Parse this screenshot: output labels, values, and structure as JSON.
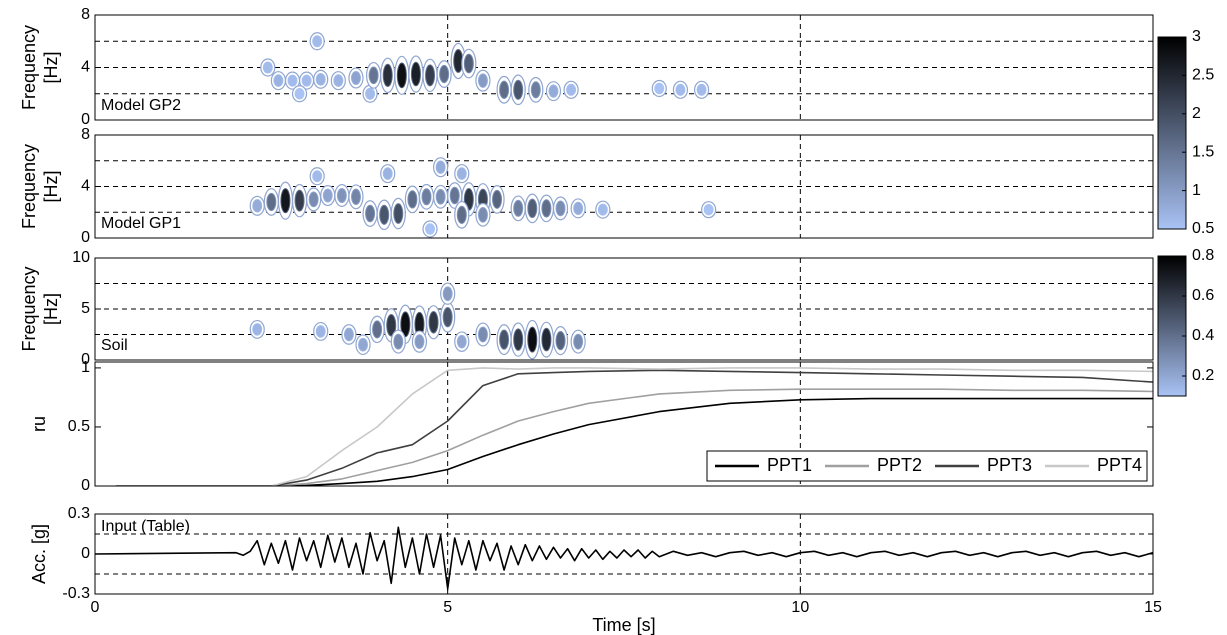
{
  "chart_data": [
    {
      "type": "spectrogram",
      "label": "Model GP2",
      "ylabel_lines": [
        "Frequency",
        "[Hz]"
      ],
      "xlim": [
        0,
        15
      ],
      "vgrid": [
        5,
        10
      ],
      "ylim": [
        0,
        8
      ],
      "yticks": [
        0,
        4,
        8
      ],
      "hgrid": [
        2,
        4,
        6
      ],
      "clim": [
        0.5,
        3
      ],
      "colormap": [
        "#a9c3f5",
        "#000000"
      ],
      "cticks": [
        3,
        2.5,
        2,
        1.5,
        1,
        0.5
      ],
      "blobs": {
        "t": [
          2.45,
          2.6,
          2.8,
          3.0,
          3.2,
          3.15,
          3.45,
          3.7,
          3.9,
          3.95,
          4.15,
          4.35,
          4.55,
          4.75,
          4.95,
          5.15,
          5.3,
          5.5,
          5.8,
          6.0,
          6.25,
          6.5,
          6.75,
          8.0,
          8.3,
          8.6,
          2.9
        ],
        "f": [
          4.0,
          3.0,
          3.0,
          3.0,
          3.1,
          6.0,
          3.0,
          3.2,
          2.0,
          3.4,
          3.4,
          3.4,
          3.5,
          3.4,
          3.5,
          4.5,
          4.3,
          3.0,
          2.3,
          2.3,
          2.3,
          2.2,
          2.3,
          2.4,
          2.3,
          2.3,
          2.0
        ],
        "amp": [
          0.6,
          0.7,
          0.6,
          0.6,
          0.7,
          0.6,
          0.7,
          0.9,
          0.6,
          1.5,
          2.4,
          2.8,
          2.6,
          2.2,
          1.6,
          2.5,
          1.8,
          1.0,
          1.6,
          1.9,
          1.4,
          0.8,
          0.6,
          0.5,
          0.6,
          0.6,
          0.5
        ]
      }
    },
    {
      "type": "spectrogram",
      "label": "Model GP1",
      "ylabel_lines": [
        "Frequency",
        "[Hz]"
      ],
      "xlim": [
        0,
        15
      ],
      "vgrid": [
        5,
        10
      ],
      "ylim": [
        0,
        8
      ],
      "yticks": [
        0,
        4,
        8
      ],
      "hgrid": [
        2,
        4,
        6
      ],
      "clim": [
        0.5,
        3
      ],
      "colormap": [
        "#a9c3f5",
        "#000000"
      ],
      "blobs": {
        "t": [
          2.3,
          2.5,
          2.7,
          2.9,
          3.1,
          3.3,
          3.5,
          3.7,
          3.9,
          4.1,
          4.3,
          4.5,
          4.7,
          4.9,
          5.1,
          5.3,
          5.5,
          5.7,
          5.2,
          5.5,
          6.0,
          6.2,
          6.4,
          6.6,
          6.85,
          3.15,
          4.15,
          4.9,
          5.2,
          8.7,
          7.2,
          4.75
        ],
        "f": [
          2.5,
          2.8,
          2.9,
          2.9,
          3.0,
          3.3,
          3.3,
          3.2,
          1.9,
          1.8,
          1.9,
          3.0,
          3.2,
          3.2,
          3.3,
          3.0,
          3.0,
          3.0,
          1.8,
          1.8,
          2.3,
          2.3,
          2.3,
          2.3,
          2.3,
          4.8,
          5.0,
          5.5,
          5.0,
          2.2,
          2.2,
          0.7
        ],
        "amp": [
          0.8,
          1.6,
          2.7,
          2.2,
          1.2,
          0.9,
          1.1,
          1.3,
          1.5,
          1.9,
          2.0,
          1.6,
          1.4,
          1.2,
          1.5,
          2.3,
          2.1,
          1.7,
          1.6,
          1.2,
          1.4,
          1.8,
          1.6,
          1.2,
          0.8,
          0.6,
          0.7,
          0.8,
          0.7,
          0.5,
          0.6,
          0.5
        ]
      }
    },
    {
      "type": "spectrogram",
      "label": "Soil",
      "ylabel_lines": [
        "Frequency",
        "[Hz]"
      ],
      "xlim": [
        0,
        15
      ],
      "vgrid": [
        5,
        10
      ],
      "ylim": [
        0,
        10
      ],
      "yticks": [
        0,
        5,
        10
      ],
      "hgrid": [
        2.5,
        5,
        7.5
      ],
      "clim": [
        0.1,
        0.8
      ],
      "colormap": [
        "#a9c3f5",
        "#000000"
      ],
      "cticks": [
        0.8,
        0.6,
        0.4,
        0.2
      ],
      "blobs": {
        "t": [
          2.3,
          3.2,
          3.6,
          3.8,
          4.0,
          4.2,
          4.4,
          4.6,
          4.8,
          5.0,
          5.0,
          4.3,
          4.6,
          5.2,
          5.5,
          5.8,
          6.0,
          6.2,
          6.4,
          6.6,
          6.85
        ],
        "f": [
          3.0,
          2.8,
          2.5,
          1.5,
          3.0,
          3.4,
          3.5,
          3.5,
          3.7,
          4.2,
          6.5,
          1.8,
          1.8,
          1.8,
          2.5,
          2.0,
          2.0,
          2.0,
          2.0,
          1.9,
          1.8
        ],
        "amp": [
          0.15,
          0.15,
          0.2,
          0.2,
          0.4,
          0.6,
          0.75,
          0.7,
          0.6,
          0.5,
          0.25,
          0.3,
          0.25,
          0.2,
          0.3,
          0.5,
          0.6,
          0.75,
          0.65,
          0.45,
          0.3
        ]
      }
    },
    {
      "type": "line",
      "ylabel": "ru",
      "xlim": [
        0,
        15
      ],
      "vgrid": [
        5,
        10
      ],
      "ylim": [
        0,
        1.05
      ],
      "yticks": [
        0,
        0.5,
        1
      ],
      "legend": "lower right",
      "x": [
        0.3,
        1,
        2,
        2.5,
        3,
        3.5,
        4,
        4.5,
        5,
        5.5,
        6,
        6.5,
        7,
        8,
        9,
        10,
        11,
        12,
        13,
        14,
        15
      ],
      "series": [
        {
          "name": "PPT1",
          "color": "#000000",
          "values": [
            0,
            0,
            0,
            0,
            0.005,
            0.02,
            0.04,
            0.08,
            0.14,
            0.25,
            0.35,
            0.44,
            0.52,
            0.63,
            0.7,
            0.73,
            0.74,
            0.74,
            0.74,
            0.74,
            0.74
          ]
        },
        {
          "name": "PPT2",
          "color": "#a0a0a0",
          "values": [
            0,
            0,
            0,
            0,
            0.02,
            0.06,
            0.13,
            0.2,
            0.3,
            0.43,
            0.55,
            0.63,
            0.7,
            0.78,
            0.81,
            0.82,
            0.82,
            0.82,
            0.81,
            0.81,
            0.8
          ]
        },
        {
          "name": "PPT3",
          "color": "#404040",
          "values": [
            0,
            0,
            0,
            0,
            0.05,
            0.15,
            0.28,
            0.35,
            0.55,
            0.85,
            0.95,
            0.96,
            0.97,
            0.98,
            0.97,
            0.96,
            0.95,
            0.94,
            0.93,
            0.92,
            0.88
          ]
        },
        {
          "name": "PPT4",
          "color": "#c8c8c8",
          "values": [
            0,
            0,
            0,
            0,
            0.08,
            0.3,
            0.5,
            0.78,
            0.98,
            1,
            0.99,
            1,
            1,
            0.99,
            1,
            1,
            0.99,
            0.99,
            0.98,
            0.98,
            0.97
          ]
        }
      ]
    },
    {
      "type": "line",
      "label": "Input (Table)",
      "ylabel": "Acc. [g]",
      "xlabel": "Time [s]",
      "xlim": [
        0,
        15
      ],
      "xticks": [
        0,
        5,
        10,
        15
      ],
      "vgrid": [
        5,
        10
      ],
      "ylim": [
        -0.3,
        0.3
      ],
      "yticks": [
        -0.3,
        0,
        0.3
      ],
      "hgrid": [
        -0.15,
        0.15
      ],
      "x": [
        0,
        2,
        2.1,
        2.2,
        2.3,
        2.4,
        2.5,
        2.6,
        2.7,
        2.8,
        2.9,
        3,
        3.1,
        3.2,
        3.3,
        3.4,
        3.5,
        3.6,
        3.7,
        3.8,
        3.9,
        4,
        4.1,
        4.2,
        4.3,
        4.4,
        4.5,
        4.6,
        4.7,
        4.8,
        4.9,
        5,
        5.1,
        5.2,
        5.3,
        5.4,
        5.5,
        5.6,
        5.7,
        5.8,
        5.9,
        6,
        6.1,
        6.2,
        6.3,
        6.4,
        6.5,
        6.6,
        6.7,
        6.8,
        6.9,
        7,
        7.1,
        7.2,
        7.3,
        7.4,
        7.5,
        7.6,
        7.7,
        7.8,
        7.9,
        8,
        8.2,
        8.4,
        8.6,
        8.8,
        9,
        9.2,
        9.4,
        9.6,
        9.8,
        10,
        10.2,
        10.4,
        10.6,
        10.8,
        11,
        11.2,
        11.4,
        11.6,
        11.8,
        12,
        12.2,
        12.4,
        12.6,
        12.8,
        13,
        13.2,
        13.4,
        13.6,
        13.8,
        14,
        14.2,
        14.4,
        14.6,
        14.8,
        15
      ],
      "series": [
        {
          "color": "#000000",
          "values": [
            0,
            0.01,
            -0.01,
            0.02,
            0.1,
            -0.08,
            0.08,
            -0.07,
            0.1,
            -0.12,
            0.12,
            -0.05,
            0.1,
            -0.1,
            0.14,
            -0.06,
            0.12,
            -0.1,
            0.08,
            -0.15,
            0.16,
            -0.05,
            0.1,
            -0.22,
            0.2,
            -0.1,
            0.12,
            -0.15,
            0.15,
            -0.1,
            0.14,
            -0.26,
            0.12,
            -0.08,
            0.1,
            -0.12,
            0.1,
            -0.05,
            0.08,
            -0.12,
            0.06,
            -0.08,
            0.07,
            -0.05,
            0.06,
            -0.04,
            0.05,
            -0.03,
            0.04,
            -0.05,
            0.04,
            -0.03,
            0.03,
            -0.04,
            0.02,
            -0.03,
            0.03,
            -0.02,
            0.03,
            -0.03,
            0.02,
            -0.02,
            0.02,
            -0.01,
            0.01,
            -0.02,
            0.01,
            0.02,
            -0.01,
            0.01,
            -0.02,
            0.01,
            0.02,
            -0.01,
            0.01,
            -0.02,
            0.01,
            0.02,
            -0.01,
            0.01,
            -0.02,
            0.01,
            0.02,
            -0.01,
            0.01,
            -0.02,
            0.01,
            0.02,
            -0.01,
            0.01,
            -0.02,
            0.01,
            0.02,
            -0.01,
            0.01,
            -0.02,
            0.01
          ]
        }
      ]
    }
  ]
}
